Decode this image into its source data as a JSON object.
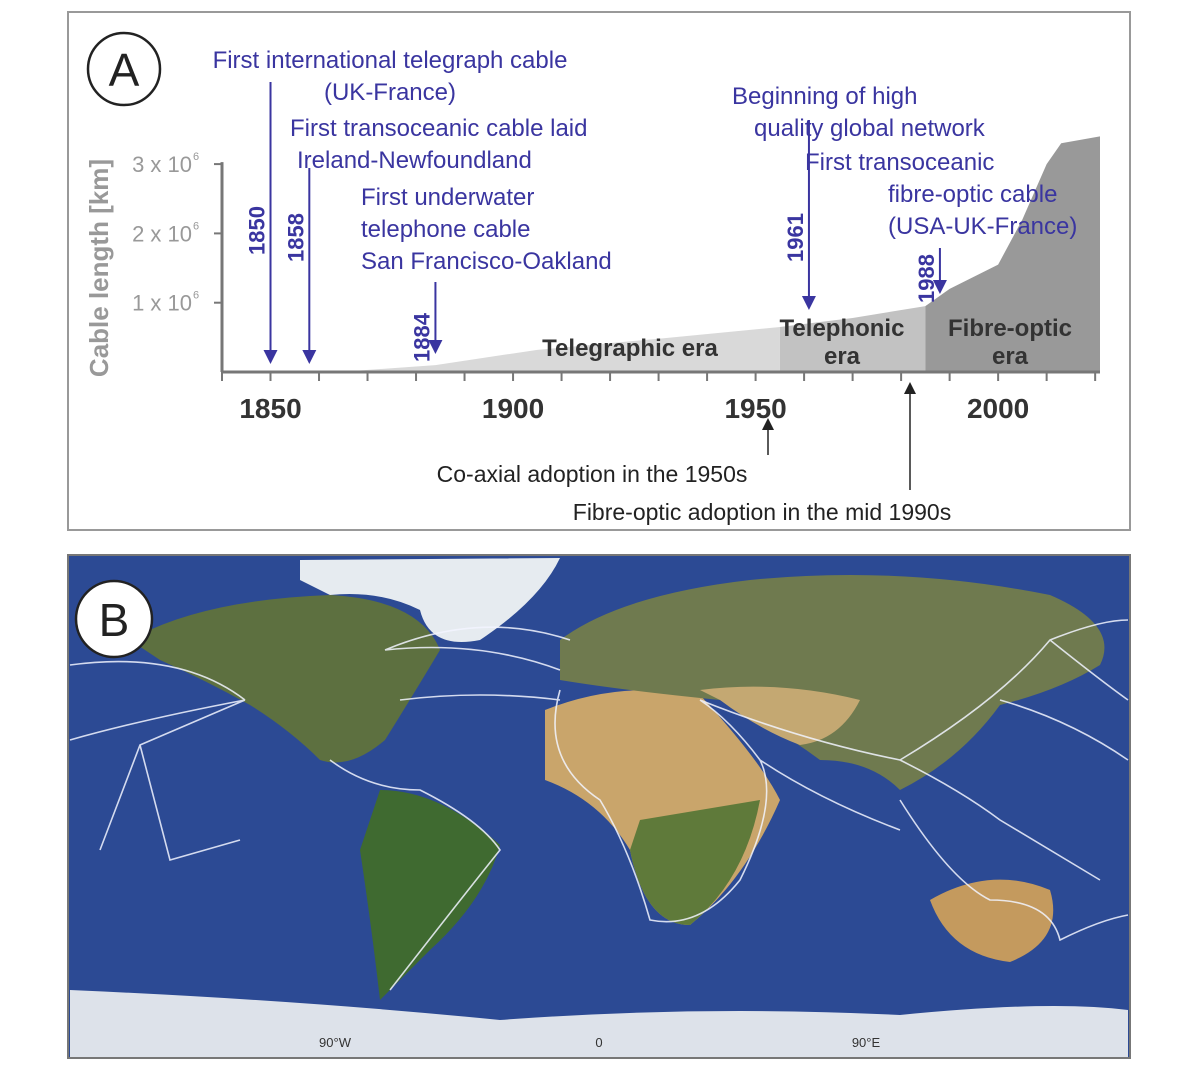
{
  "chart_data": {
    "type": "area",
    "panel_label": "A",
    "ylabel": "Cable length [km]",
    "xlim": [
      1840,
      2021
    ],
    "ylim": [
      0,
      3500000
    ],
    "x_ticks": [
      1850,
      1900,
      1950,
      2000
    ],
    "x_tick_labels": [
      "1850",
      "1900",
      "1950",
      "2000"
    ],
    "y_ticks": [
      1000000,
      2000000,
      3000000
    ],
    "y_tick_labels": [
      {
        "mantissa": "1 x 10",
        "exp": "6"
      },
      {
        "mantissa": "2 x 10",
        "exp": "6"
      },
      {
        "mantissa": "3 x 10",
        "exp": "6"
      }
    ],
    "x": [
      1864,
      1884,
      1905,
      1930,
      1955,
      1970,
      1985,
      1990,
      2000,
      2005,
      2010,
      2013,
      2021
    ],
    "y": [
      0,
      100000,
      320000,
      480000,
      650000,
      780000,
      950000,
      1200000,
      1550000,
      2200000,
      3000000,
      3300000,
      3400000
    ],
    "eras": [
      {
        "label_lines": [
          "Telegraphic era"
        ],
        "start": 1864,
        "end": 1955,
        "color": "#d9d9d9"
      },
      {
        "label_lines": [
          "Telephonic",
          "era"
        ],
        "start": 1955,
        "end": 1985,
        "color": "#c2c2c2"
      },
      {
        "label_lines": [
          "Fibre-optic",
          "era"
        ],
        "start": 1985,
        "end": 2021,
        "color": "#999999"
      }
    ],
    "events": [
      {
        "year": 1850,
        "year_label": "1850",
        "lines": [
          "First international telegraph cable",
          "(UK-France)"
        ]
      },
      {
        "year": 1858,
        "year_label": "1858",
        "lines": [
          "First transoceanic cable laid",
          "Ireland-Newfoundland"
        ]
      },
      {
        "year": 1884,
        "year_label": "1884",
        "lines": [
          "First underwater",
          "telephone cable",
          "San Francisco-Oakland"
        ]
      },
      {
        "year": 1961,
        "year_label": "1961",
        "lines": [
          "Beginning of high",
          "quality global network"
        ]
      },
      {
        "year": 1988,
        "year_label": "1988",
        "lines": [
          "First transoceanic",
          "fibre-optic cable",
          "(USA-UK-France)"
        ]
      }
    ],
    "adoption_notes": [
      {
        "year": 1953,
        "text": "Co-axial adoption in the 1950s"
      },
      {
        "year": 1985,
        "text": "Fibre-optic adoption in the mid 1990s"
      }
    ],
    "event_color": "#3a35a0",
    "grid": false
  },
  "map": {
    "panel_label": "B",
    "lon_labels": [
      "90°W",
      "0",
      "90°E"
    ],
    "ocean_color": "#2c4a94",
    "cable_color": "#ffffff"
  }
}
